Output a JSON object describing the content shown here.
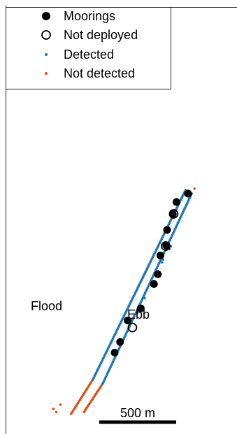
{
  "chart_data": {
    "type": "scatter",
    "title": "",
    "xlabel": "",
    "ylabel": "",
    "legend": {
      "placement": "top-left",
      "entries": [
        {
          "label": "Moorings",
          "marker": "filled-circle",
          "color": "#000000"
        },
        {
          "label": "Not deployed",
          "marker": "open-circle",
          "color": "#000000"
        },
        {
          "label": "Detected",
          "marker": "small-dot",
          "color": "#1f77b4"
        },
        {
          "label": "Not detected",
          "marker": "small-dot",
          "color": "#d95319"
        }
      ]
    },
    "annotations": [
      {
        "text": "Flood",
        "side": "left-track"
      },
      {
        "text": "Ebb",
        "side": "right-track"
      }
    ],
    "scale_bar": {
      "label": "500 m",
      "length_m": 500
    },
    "series": [
      {
        "name": "Moorings",
        "units": "m",
        "points": [
          [
            1045,
            1615
          ],
          [
            962,
            1555
          ],
          [
            936,
            1468
          ],
          [
            895,
            1355
          ],
          [
            889,
            1243
          ],
          [
            847,
            1172
          ],
          [
            829,
            1038
          ],
          [
            801,
            968
          ],
          [
            707,
            794
          ],
          [
            613,
            707
          ],
          [
            559,
            553
          ],
          [
            520,
            477
          ]
        ]
      },
      {
        "name": "Not deployed",
        "units": "m",
        "points": [
          [
            942,
            1470
          ],
          [
            885,
            1240
          ],
          [
            647,
            657
          ]
        ]
      },
      {
        "name": "Detected",
        "units": "m",
        "tracks": [
          {
            "label": "Flood",
            "from": [
              365,
              286
            ],
            "to": [
              1027,
              1640
            ]
          },
          {
            "label": "Ebb",
            "from": [
              435,
              256
            ],
            "to": [
              1071,
              1615
            ]
          }
        ],
        "scatter_extra": [
          [
            682,
            767
          ],
          [
            734,
            867
          ],
          [
            912,
            1218
          ],
          [
            922,
            1238
          ],
          [
            867,
            1143
          ],
          [
            858,
            1123
          ]
        ]
      },
      {
        "name": "Not detected",
        "units": "m",
        "tracks": [
          {
            "label": "Flood",
            "from": [
              209,
              40
            ],
            "to": [
              365,
              286
            ]
          },
          {
            "label": "Ebb",
            "from": [
              301,
              53
            ],
            "to": [
              435,
              256
            ]
          }
        ],
        "scatter_extra": [
          [
            82,
            74
          ],
          [
            102,
            53
          ],
          [
            132,
            105
          ],
          [
            1091,
            1650
          ]
        ]
      }
    ]
  }
}
